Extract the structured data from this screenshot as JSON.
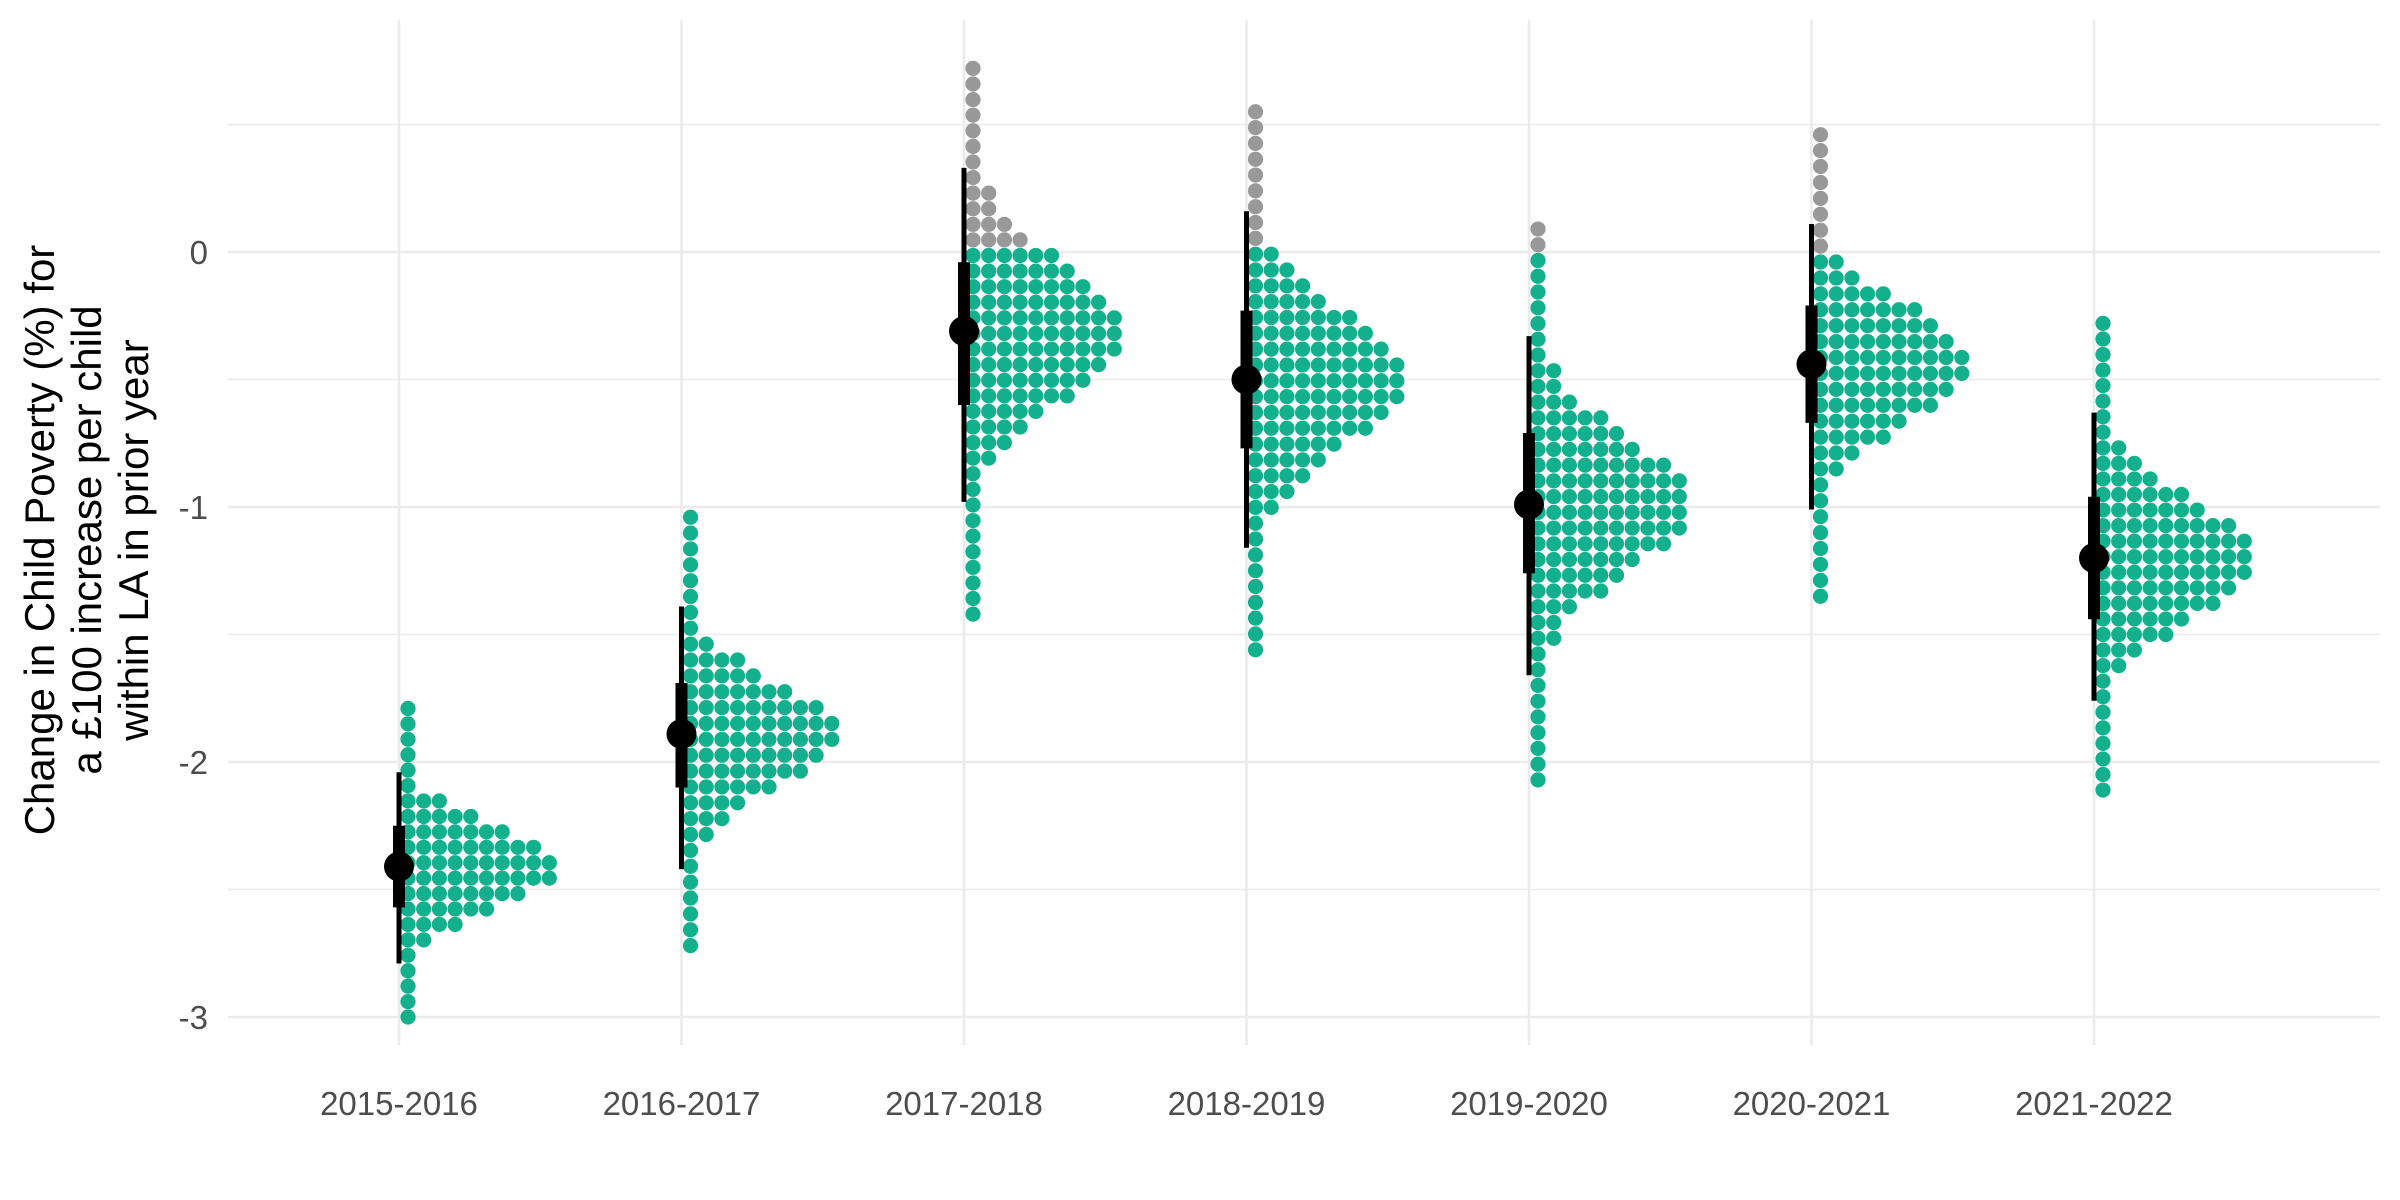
{
  "chart_data": {
    "type": "dotplot",
    "title": "",
    "xlabel": "",
    "ylabel_lines": [
      "Change in Child Poverty (%) for",
      "a £100 increase per child",
      "within LA in prior year"
    ],
    "ylim": [
      -3.1,
      0.9
    ],
    "yticks": [
      0,
      -1,
      -2,
      -3
    ],
    "ytick_labels": [
      "0",
      "-1",
      "-2",
      "-3"
    ],
    "grid": true,
    "legend": "none",
    "colors": {
      "negative": "#12b08c",
      "positive": "#999999",
      "interval": "#000000",
      "grid": "#ebebeb"
    },
    "categories": [
      "2015-2016",
      "2016-2017",
      "2017-2018",
      "2018-2019",
      "2019-2020",
      "2020-2021",
      "2021-2022"
    ],
    "series": [
      {
        "category": "2015-2016",
        "median": -2.41,
        "interval_66": [
          -2.57,
          -2.25
        ],
        "interval_95": [
          -2.79,
          -2.04
        ],
        "dist_min": -3.0,
        "dist_max": -1.79
      },
      {
        "category": "2016-2017",
        "median": -1.89,
        "interval_66": [
          -2.1,
          -1.69
        ],
        "interval_95": [
          -2.42,
          -1.39
        ],
        "dist_min": -2.72,
        "dist_max": -1.04
      },
      {
        "category": "2017-2018",
        "median": -0.31,
        "interval_66": [
          -0.6,
          -0.04
        ],
        "interval_95": [
          -0.98,
          0.33
        ],
        "dist_min": -1.42,
        "dist_max": 0.72
      },
      {
        "category": "2018-2019",
        "median": -0.5,
        "interval_66": [
          -0.77,
          -0.23
        ],
        "interval_95": [
          -1.16,
          0.16
        ],
        "dist_min": -1.56,
        "dist_max": 0.55
      },
      {
        "category": "2019-2020",
        "median": -0.99,
        "interval_66": [
          -1.26,
          -0.71
        ],
        "interval_95": [
          -1.66,
          -0.33
        ],
        "dist_min": -2.07,
        "dist_max": 0.09
      },
      {
        "category": "2020-2021",
        "median": -0.44,
        "interval_66": [
          -0.67,
          -0.21
        ],
        "interval_95": [
          -1.01,
          0.11
        ],
        "dist_min": -1.35,
        "dist_max": 0.46
      },
      {
        "category": "2021-2022",
        "median": -1.2,
        "interval_66": [
          -1.44,
          -0.96
        ],
        "interval_95": [
          -1.76,
          -0.63
        ],
        "dist_min": -2.11,
        "dist_max": -0.28
      }
    ]
  }
}
